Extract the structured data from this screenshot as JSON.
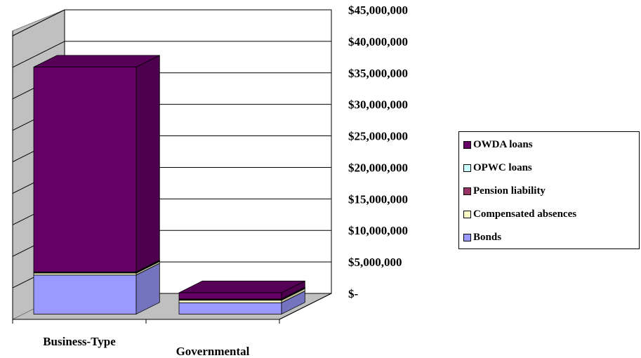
{
  "chart_data": {
    "type": "bar",
    "stacked": true,
    "three_d": true,
    "categories": [
      "Business-Type",
      "Governmental"
    ],
    "series": [
      {
        "name": "Bonds",
        "color": "#9999ff",
        "values": [
          6200000,
          1800000
        ]
      },
      {
        "name": "Compensated absences",
        "color": "#ffffcc",
        "values": [
          300000,
          400000
        ]
      },
      {
        "name": "Pension liability",
        "color": "#993366",
        "values": [
          100000,
          100000
        ]
      },
      {
        "name": "OPWC loans",
        "color": "#ccffff",
        "values": [
          100000,
          100000
        ]
      },
      {
        "name": "OWDA loans",
        "color": "#660066",
        "values": [
          32500000,
          1000000
        ]
      }
    ],
    "legend_order": [
      "OWDA loans",
      "OPWC loans",
      "Pension liability",
      "Compensated absences",
      "Bonds"
    ],
    "y_ticks": [
      "$-",
      "$5,000,000",
      "$10,000,000",
      "$15,000,000",
      "$20,000,000",
      "$25,000,000",
      "$30,000,000",
      "$35,000,000",
      "$40,000,000",
      "$45,000,000"
    ],
    "ylim": [
      0,
      45000000
    ],
    "grid": true,
    "legend_position": "right",
    "title": "",
    "xlabel": "",
    "ylabel": ""
  }
}
